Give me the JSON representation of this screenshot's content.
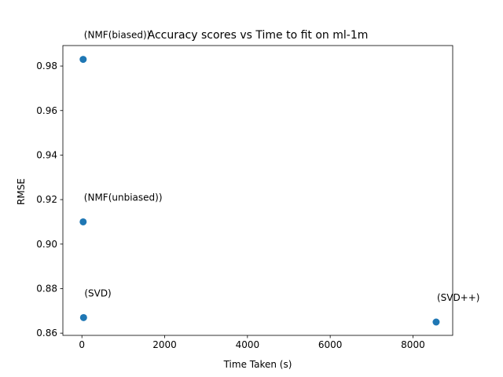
{
  "chart_data": {
    "type": "scatter",
    "title": "Accuracy scores vs Time to fit on ml-1m",
    "xlabel": "Time Taken (s)",
    "ylabel": "RMSE",
    "xlim": [
      -460,
      8960
    ],
    "ylim": [
      0.859,
      0.9892
    ],
    "xticks": [
      0,
      2000,
      4000,
      6000,
      8000
    ],
    "yticks": [
      0.86,
      0.88,
      0.9,
      0.92,
      0.94,
      0.96,
      0.98
    ],
    "ytick_labels": [
      "0.86",
      "0.88",
      "0.90",
      "0.92",
      "0.94",
      "0.96",
      "0.98"
    ],
    "grid": false,
    "marker_color": "#1f77b4",
    "points": [
      {
        "label": "(NMF(biased))",
        "x": 30,
        "y": 0.983
      },
      {
        "label": "(NMF(unbiased))",
        "x": 30,
        "y": 0.91
      },
      {
        "label": "(SVD)",
        "x": 40,
        "y": 0.867
      },
      {
        "label": "(SVD++)",
        "x": 8560,
        "y": 0.865
      }
    ]
  }
}
